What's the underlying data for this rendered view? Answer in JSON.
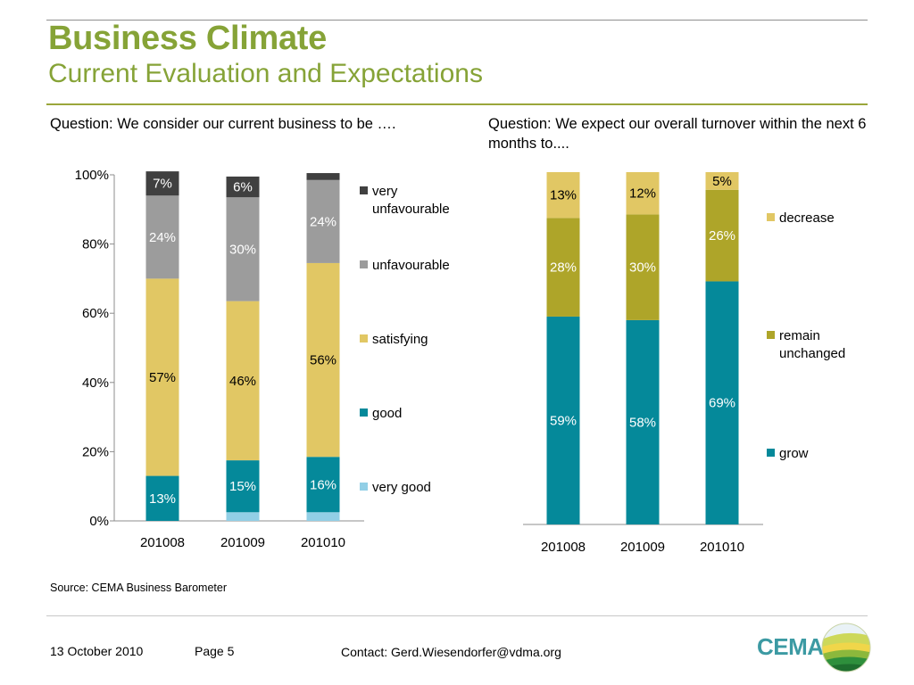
{
  "title": "Business Climate",
  "subtitle": "Current Evaluation and Expectations",
  "colors": {
    "brand_green": "#86a337",
    "very_unfavourable": "#404040",
    "unfavourable": "#9c9c9c",
    "satisfying": "#e1c764",
    "good": "#05899a",
    "very_good": "#92cfe6",
    "decrease": "#e1c764",
    "remain_unchanged": "#aea529",
    "grow": "#05899a"
  },
  "chart_data": [
    {
      "type": "bar",
      "stacked": true,
      "title": "Question: We consider our current business to be ….",
      "categories": [
        "201008",
        "201009",
        "201010"
      ],
      "ylim": [
        0,
        100
      ],
      "yticks": [
        "0%",
        "20%",
        "40%",
        "60%",
        "80%",
        "100%"
      ],
      "legend_position": "right",
      "series": [
        {
          "name": "very good",
          "values": [
            0,
            2.5,
            2.5
          ],
          "labels": [
            "",
            "",
            ""
          ],
          "color": "#92cfe6",
          "label_color": "#ffffff"
        },
        {
          "name": "good",
          "values": [
            13,
            15,
            16
          ],
          "labels": [
            "13%",
            "15%",
            "16%"
          ],
          "color": "#05899a",
          "label_color": "#ffffff"
        },
        {
          "name": "satisfying",
          "values": [
            57,
            46,
            56
          ],
          "labels": [
            "57%",
            "46%",
            "56%"
          ],
          "color": "#e1c764",
          "label_color": "#000000"
        },
        {
          "name": "unfavourable",
          "values": [
            24,
            30,
            24
          ],
          "labels": [
            "24%",
            "30%",
            "24%"
          ],
          "color": "#9c9c9c",
          "label_color": "#ffffff"
        },
        {
          "name": "very unfavourable",
          "values": [
            7,
            6,
            2
          ],
          "labels": [
            "7%",
            "6%",
            ""
          ],
          "color": "#404040",
          "label_color": "#ffffff"
        }
      ],
      "legend": [
        "very unfavourable",
        "unfavourable",
        "satisfying",
        "good",
        "very good"
      ]
    },
    {
      "type": "bar",
      "stacked": true,
      "title": "Question: We expect our overall turnover within the next 6 months to....",
      "categories": [
        "201008",
        "201009",
        "201010"
      ],
      "ylim": [
        0,
        100
      ],
      "legend_position": "right",
      "series": [
        {
          "name": "grow",
          "values": [
            59,
            58,
            69
          ],
          "labels": [
            "59%",
            "58%",
            "69%"
          ],
          "color": "#05899a",
          "label_color": "#ffffff"
        },
        {
          "name": "remain unchanged",
          "values": [
            28,
            30,
            26
          ],
          "labels": [
            "28%",
            "30%",
            "26%"
          ],
          "color": "#aea529",
          "label_color": "#ffffff"
        },
        {
          "name": "decrease",
          "values": [
            13,
            12,
            5
          ],
          "labels": [
            "13%",
            "12%",
            "5%"
          ],
          "color": "#e1c764",
          "label_color": "#000000"
        }
      ],
      "legend": [
        "decrease",
        "remain unchanged",
        "grow"
      ]
    }
  ],
  "source": "Source: CEMA Business Barometer",
  "footer": {
    "date": "13 October 2010",
    "page": "Page 5",
    "contact": "Contact: Gerd.Wiesendorfer@vdma.org"
  },
  "logo": {
    "text": "CEMA",
    "icon": "cema-landscape-logo-icon"
  }
}
